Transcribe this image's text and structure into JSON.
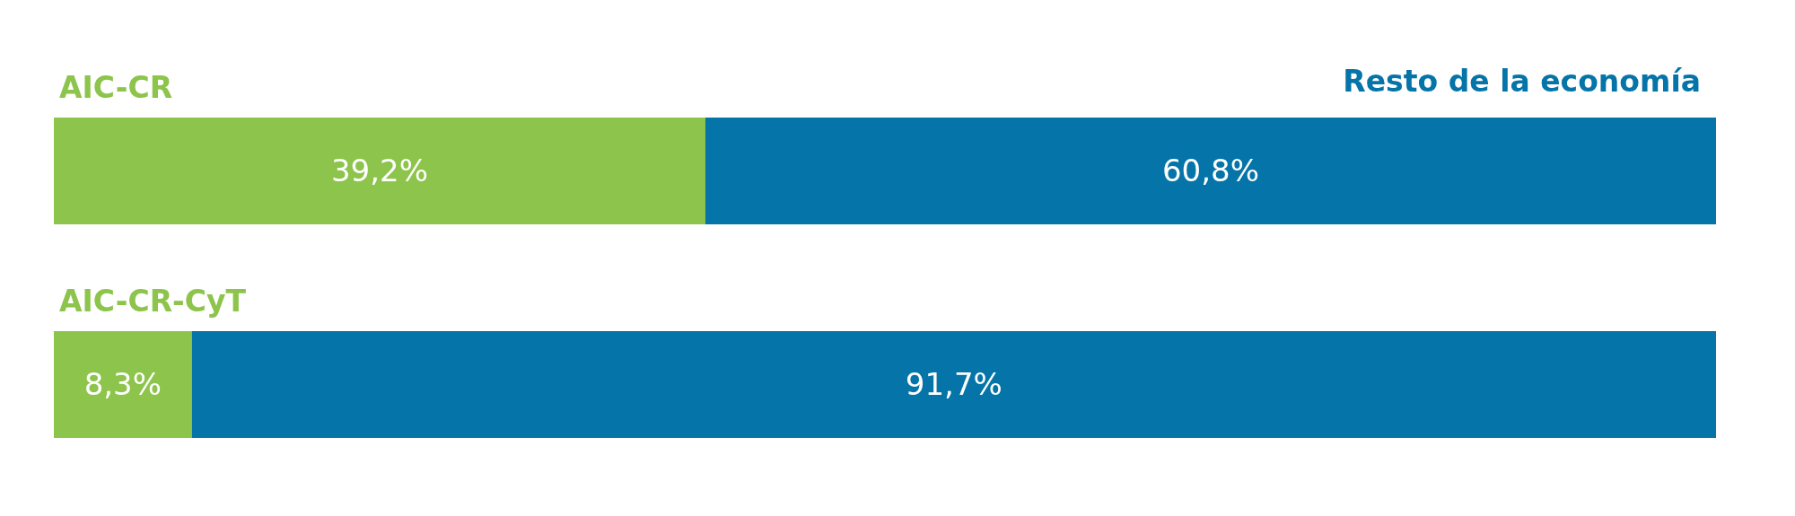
{
  "chart_data": {
    "type": "bar",
    "orientation": "horizontal",
    "stacked": true,
    "categories": [
      "AIC-CR",
      "AIC-CR-CyT"
    ],
    "xlim": [
      0,
      100
    ],
    "legend": "top right",
    "series": [
      {
        "color": "#8dc44b",
        "values": [
          39.2,
          8.3
        ],
        "value_labels": [
          "39,2%",
          "8,3%"
        ]
      },
      {
        "name": "Resto de la economía",
        "color": "#0574a8",
        "values": [
          60.8,
          91.7
        ],
        "value_labels": [
          "60,8%",
          "91,7%"
        ]
      }
    ]
  }
}
